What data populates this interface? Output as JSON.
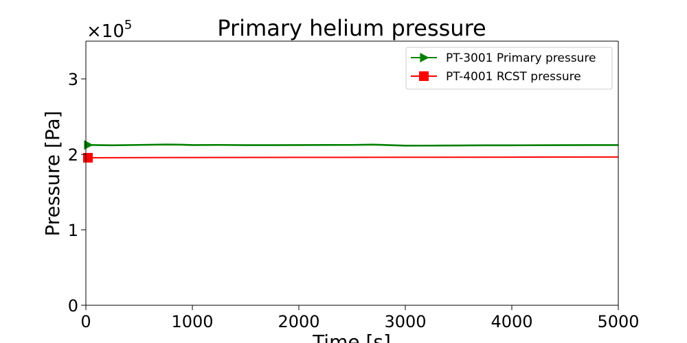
{
  "chart_data": {
    "type": "line",
    "title": "Primary helium pressure",
    "xlabel": "Time [s]",
    "ylabel": "Pressure [Pa]",
    "y_multiplier": "×10",
    "y_multiplier_exp": "5",
    "xlim": [
      0,
      5000
    ],
    "ylim": [
      0,
      350000
    ],
    "xticks": [
      0,
      1000,
      2000,
      3000,
      4000,
      5000
    ],
    "xtick_labels": [
      "0",
      "1000",
      "2000",
      "3000",
      "4000",
      "5000"
    ],
    "yticks": [
      0,
      100000,
      200000,
      300000
    ],
    "ytick_labels": [
      "0",
      "1",
      "2",
      "3"
    ],
    "grid": false,
    "legend_position": "upper right",
    "series": [
      {
        "name": "PT-3001 Primary pressure",
        "color": "#008000",
        "marker": "triangle-right",
        "x": [
          0,
          250,
          500,
          750,
          900,
          1000,
          1250,
          1500,
          1750,
          2000,
          2250,
          2500,
          2700,
          2900,
          3000,
          3250,
          3500,
          3750,
          4000,
          4250,
          4500,
          4750,
          5000
        ],
        "y": [
          212500,
          212000,
          212500,
          213000,
          212800,
          212300,
          212500,
          212200,
          212200,
          212300,
          212400,
          212500,
          212900,
          212000,
          211500,
          211600,
          211800,
          212000,
          212000,
          212100,
          212200,
          212300,
          212300
        ]
      },
      {
        "name": "PT-4001 RCST pressure",
        "color": "#ff0000",
        "marker": "square",
        "x": [
          0,
          1000,
          2000,
          3000,
          4000,
          5000
        ],
        "y": [
          195500,
          195800,
          196000,
          196100,
          196300,
          196500
        ]
      }
    ]
  }
}
